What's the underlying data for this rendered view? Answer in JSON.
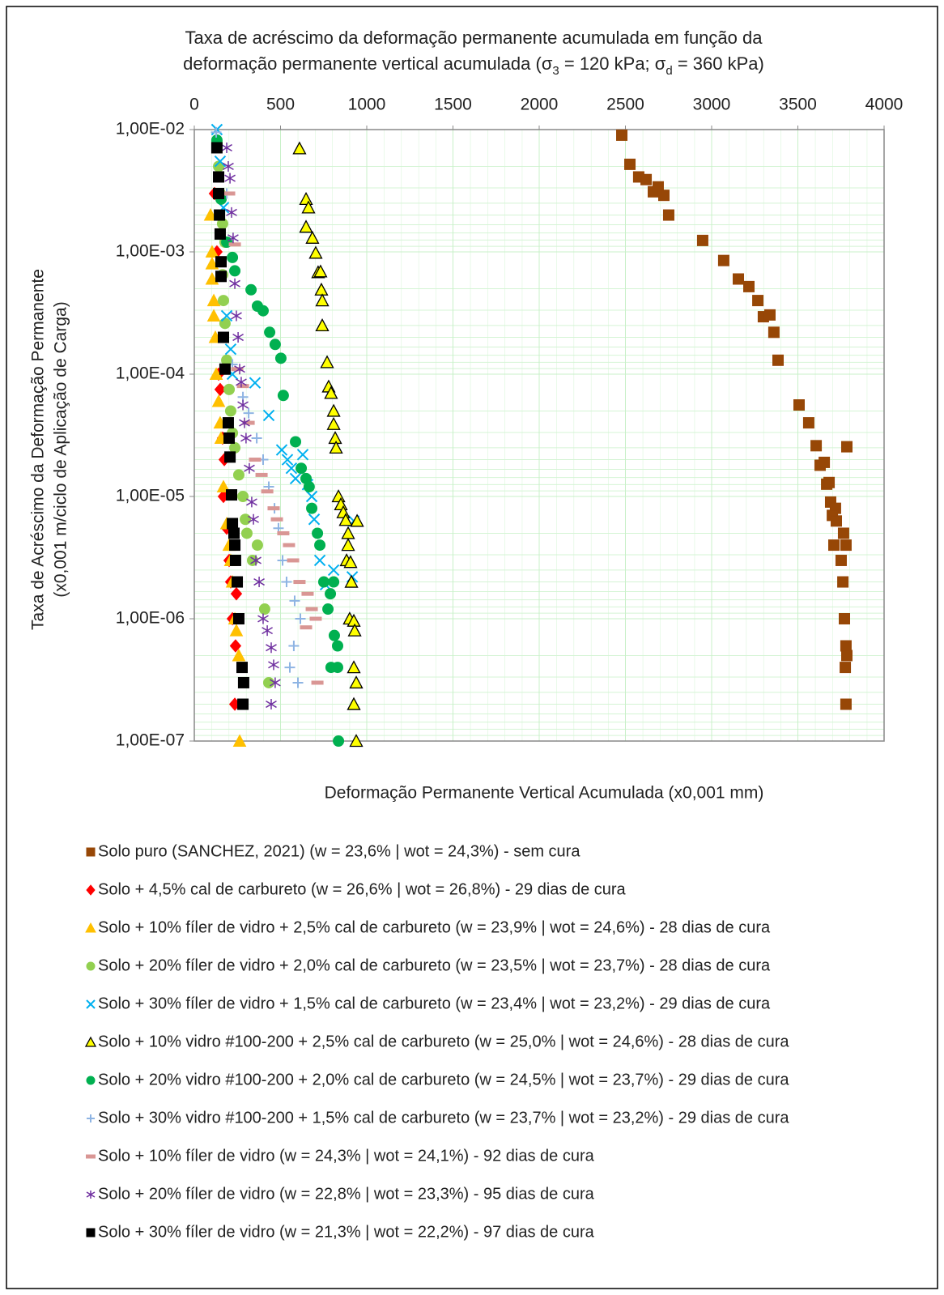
{
  "chart_data": {
    "type": "scatter",
    "title": {
      "line1": "Taxa de acréscimo da deformação permanente acumulada em função da",
      "line2_parts": [
        "deformação permanente vertical acumulada  (σ",
        "3",
        " = 120 kPa; σ",
        "d",
        " = 360 kPa)"
      ]
    },
    "x_label": "Deformação Permanente Vertical Acumulada (x0,001 mm)",
    "y_label": [
      "Taxa de Acréscimo da Deformação Permanente",
      "(x0,001 m/ciclo de Aplicação de Carga)"
    ],
    "xlim": [
      0,
      4000
    ],
    "xticks": [
      0,
      500,
      1000,
      1500,
      2000,
      2500,
      3000,
      3500,
      4000
    ],
    "x_axis_position": "top",
    "ylim": [
      1e-07,
      0.01
    ],
    "y_scale": "log",
    "yticks": [
      {
        "value": 0.01,
        "label": "1,00E-02"
      },
      {
        "value": 0.001,
        "label": "1,00E-03"
      },
      {
        "value": 0.0001,
        "label": "1,00E-04"
      },
      {
        "value": 1e-05,
        "label": "1,00E-05"
      },
      {
        "value": 1e-06,
        "label": "1,00E-06"
      },
      {
        "value": 1e-07,
        "label": "1,00E-07"
      }
    ],
    "grid": true,
    "grid_color": "#c8f0c8",
    "legend": "bottom",
    "series": [
      {
        "name": "Solo puro (SANCHEZ, 2021) (w = 23,6% | wot = 24,3%) - sem cura",
        "color": "#974706",
        "marker": "square",
        "x": [
          2479,
          2526,
          2577,
          2620,
          2662,
          2690,
          2723,
          2751,
          2948,
          3070,
          3155,
          3216,
          3268,
          3300,
          3338,
          3361,
          3385,
          3507,
          3563,
          3606,
          3784,
          3629,
          3653,
          3667,
          3681,
          3690,
          3718,
          3700,
          3723,
          3765,
          3709,
          3779,
          3751,
          3761,
          3770,
          3779,
          3784,
          3775,
          3779
        ],
        "values": [
          0.009,
          0.0052,
          0.0041,
          0.0039,
          0.0031,
          0.0034,
          0.0029,
          0.002,
          0.00124,
          0.00085,
          0.0006,
          0.00052,
          0.0004,
          0.000295,
          0.000305,
          0.00022,
          0.00013,
          5.6e-05,
          4e-05,
          2.6e-05,
          2.55e-05,
          1.8e-05,
          1.9e-05,
          1.26e-05,
          1.3e-05,
          9e-06,
          8e-06,
          7e-06,
          6.3e-06,
          5e-06,
          4e-06,
          4e-06,
          3e-06,
          2e-06,
          1e-06,
          6e-07,
          5e-07,
          4e-07,
          2e-07
        ]
      },
      {
        "name": "Solo + 4,5% cal de carbureto (w = 26,6% | wot = 26,8%) - 29 dias de cura",
        "color": "#ff0000",
        "marker": "diamond",
        "x": [
          117,
          131,
          141,
          150,
          164,
          174,
          169,
          188,
          202,
          211,
          244,
          221,
          239,
          235
        ],
        "values": [
          0.003,
          0.001,
          0.0001,
          7.5e-05,
          3e-05,
          2e-05,
          1e-05,
          5.5e-06,
          3e-06,
          2e-06,
          1.6e-06,
          1e-06,
          6e-07,
          2e-07
        ]
      },
      {
        "name": "Solo + 10% fíler de vidro + 2,5% cal de carbureto (w = 23,9% | wot = 24,6%) - 28 dias de cura",
        "color": "#ffc000",
        "marker": "triangle",
        "x": [
          94,
          103,
          103,
          103,
          113,
          113,
          122,
          127,
          141,
          150,
          155,
          169,
          188,
          202,
          211,
          221,
          235,
          244,
          258,
          263
        ],
        "values": [
          0.002,
          0.001,
          0.0008,
          0.0006,
          0.0004,
          0.0003,
          0.0002,
          0.0001,
          6e-05,
          4e-05,
          3e-05,
          1.2e-05,
          6e-06,
          4e-06,
          3e-06,
          2e-06,
          1e-06,
          8e-07,
          5e-07,
          1e-07
        ]
      },
      {
        "name": "Solo + 20% fíler de vidro + 2,0% cal de carbureto (w = 23,5% | wot = 23,7%) - 28 dias de cura",
        "color": "#92d050",
        "marker": "circle",
        "x": [
          131,
          141,
          150,
          164,
          178,
          164,
          169,
          178,
          188,
          202,
          211,
          221,
          235,
          258,
          282,
          296,
          305,
          366,
          338,
          408,
          432
        ],
        "values": [
          0.008,
          0.005,
          0.003,
          0.0017,
          0.0012,
          0.00065,
          0.0004,
          0.00026,
          0.00013,
          7.5e-05,
          5e-05,
          3.3e-05,
          2.5e-05,
          1.5e-05,
          1e-05,
          6.5e-06,
          5e-06,
          4e-06,
          3e-06,
          1.2e-06,
          3e-07
        ]
      },
      {
        "name": "Solo + 30% fíler de vidro + 1,5% cal de carbureto (w = 23,4% | wot = 23,2%) - 29 dias de cura",
        "color": "#00b0f0",
        "marker": "x",
        "x": [
          131,
          150,
          169,
          188,
          211,
          221,
          352,
          432,
          507,
          540,
          563,
          587,
          629,
          657,
          681,
          695,
          728,
          761,
          808,
          925,
          916
        ],
        "values": [
          0.01,
          0.0055,
          0.0023,
          0.0003,
          0.00016,
          0.0001,
          8.5e-05,
          4.6e-05,
          2.4e-05,
          2e-05,
          1.7e-05,
          1.4e-05,
          2.2e-05,
          1.25e-05,
          1e-05,
          6.5e-06,
          3e-06,
          1.9e-06,
          2.5e-06,
          6.3e-06,
          2.2e-06
        ]
      },
      {
        "name": "Solo + 10% vidro #100-200 + 2,5% cal de carbureto (w = 25,0% | wot = 24,6%) - 28 dias de cura",
        "color": "#ffff00",
        "edgecolor": "#000000",
        "marker": "triangle",
        "x": [
          610,
          648,
          662,
          648,
          685,
          704,
          718,
          732,
          737,
          742,
          742,
          770,
          779,
          793,
          808,
          808,
          817,
          822,
          836,
          850,
          864,
          878,
          944,
          892,
          892,
          883,
          906,
          911,
          901,
          925,
          930,
          925,
          939,
          925,
          939
        ],
        "values": [
          0.007,
          0.0027,
          0.0023,
          0.0016,
          0.0013,
          0.00098,
          0.00068,
          0.00069,
          0.00049,
          0.0004,
          0.00025,
          0.000125,
          7.9e-05,
          7e-05,
          5e-05,
          3.9e-05,
          3e-05,
          2.5e-05,
          1e-05,
          8.6e-06,
          7.4e-06,
          6.4e-06,
          6.3e-06,
          5e-06,
          4e-06,
          3e-06,
          2.9e-06,
          2e-06,
          1e-06,
          9.6e-07,
          8e-07,
          4e-07,
          3e-07,
          2e-07,
          1e-07
        ]
      },
      {
        "name": "Solo + 20% vidro #100-200 + 2,0% cal de carbureto (w = 24,5% | wot = 23,7%) - 29 dias de cura",
        "color": "#00b050",
        "marker": "circle",
        "x": [
          131,
          155,
          188,
          221,
          235,
          329,
          366,
          399,
          437,
          469,
          502,
          516,
          587,
          620,
          648,
          666,
          681,
          714,
          728,
          751,
          808,
          789,
          775,
          812,
          831,
          793,
          831,
          836
        ],
        "values": [
          0.0082,
          0.0027,
          0.0012,
          0.0009,
          0.0007,
          0.00049,
          0.00036,
          0.00033,
          0.00022,
          0.000175,
          0.000135,
          6.7e-05,
          2.8e-05,
          1.7e-05,
          1.4e-05,
          1.2e-05,
          8e-06,
          5e-06,
          4e-06,
          2e-06,
          2e-06,
          1.6e-06,
          1.2e-06,
          7.3e-07,
          6e-07,
          4e-07,
          4e-07,
          1e-07
        ]
      },
      {
        "name": "Solo + 30% vidro #100-200 + 1,5% cal de carbureto (w = 23,7% | wot = 23,2%) - 29 dias de cura",
        "color": "#8eb4e3",
        "marker": "plus",
        "x": [
          127,
          188,
          221,
          282,
          315,
          362,
          399,
          432,
          465,
          488,
          512,
          535,
          582,
          615,
          577,
          601,
          554
        ],
        "values": [
          0.0095,
          0.003,
          0.00012,
          6.5e-05,
          4.8e-05,
          3e-05,
          2e-05,
          1.2e-05,
          8e-06,
          5.5e-06,
          3e-06,
          2e-06,
          1.4e-06,
          1e-06,
          6e-07,
          3e-07,
          4e-07
        ]
      },
      {
        "name": "Solo + 10% fíler de vidro (w = 24,3% | wot = 24,1%) - 92 dias de cura",
        "color": "#d99694",
        "marker": "dash",
        "x": [
          202,
          235,
          249,
          282,
          315,
          352,
          390,
          423,
          460,
          479,
          516,
          549,
          573,
          610,
          657,
          681,
          704,
          648,
          714
        ],
        "values": [
          0.003,
          0.00115,
          0.00011,
          8e-05,
          4e-05,
          2e-05,
          1.5e-05,
          1.1e-05,
          8e-06,
          6.5e-06,
          5e-06,
          4e-06,
          3e-06,
          2e-06,
          1.6e-06,
          1.2e-06,
          1e-06,
          8.5e-07,
          3e-07
        ]
      },
      {
        "name": "Solo + 20% fíler de vidro (w = 22,8% | wot = 23,3%) - 95 dias de cura",
        "color": "#7030a0",
        "marker": "asterisk",
        "x": [
          188,
          197,
          207,
          216,
          225,
          235,
          244,
          254,
          263,
          272,
          282,
          291,
          300,
          319,
          333,
          343,
          357,
          376,
          399,
          423,
          446,
          460,
          469,
          446
        ],
        "values": [
          0.0071,
          0.005,
          0.004,
          0.0021,
          0.0013,
          0.00055,
          0.0003,
          0.0002,
          0.00011,
          8.6e-05,
          5.6e-05,
          4e-05,
          3e-05,
          1.7e-05,
          9e-06,
          6.5e-06,
          3e-06,
          2e-06,
          1e-06,
          8e-07,
          5.8e-07,
          4.2e-07,
          3e-07,
          2e-07
        ]
      },
      {
        "name": "Solo + 30% fíler de vidro (w = 21,3% | wot = 22,2%) - 97 dias de cura",
        "color": "#000000",
        "marker": "square",
        "x": [
          131,
          141,
          141,
          146,
          150,
          155,
          155,
          169,
          178,
          197,
          202,
          207,
          216,
          221,
          230,
          235,
          239,
          249,
          258,
          277,
          286,
          282
        ],
        "values": [
          0.0071,
          0.0041,
          0.003,
          0.002,
          0.0014,
          0.00083,
          0.00063,
          0.0002,
          0.00011,
          4e-05,
          3e-05,
          2.1e-05,
          1.03e-05,
          6e-06,
          5e-06,
          4e-06,
          3e-06,
          2e-06,
          1e-06,
          4e-07,
          3e-07,
          2e-07
        ]
      }
    ]
  }
}
